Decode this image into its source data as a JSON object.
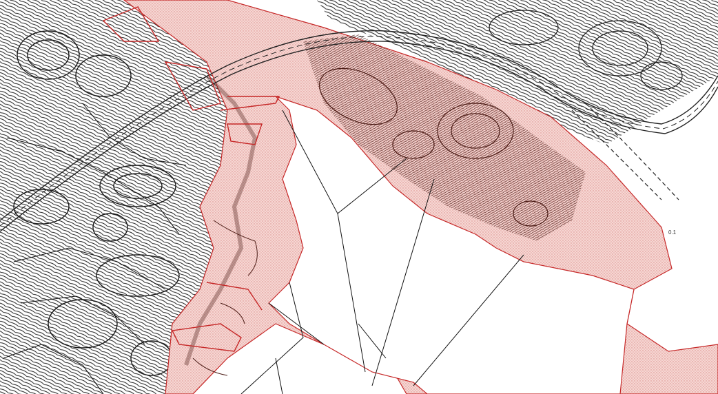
{
  "map": {
    "zone_label": "0.1",
    "colors": {
      "background": "#ffffff",
      "contour": "#1a1a1a",
      "dense_contour": "#4a1a14",
      "zone_outline": "#c62828",
      "zone_fill": "#f3c9c6",
      "road": "#222222",
      "parcel_line": "#111111"
    }
  }
}
